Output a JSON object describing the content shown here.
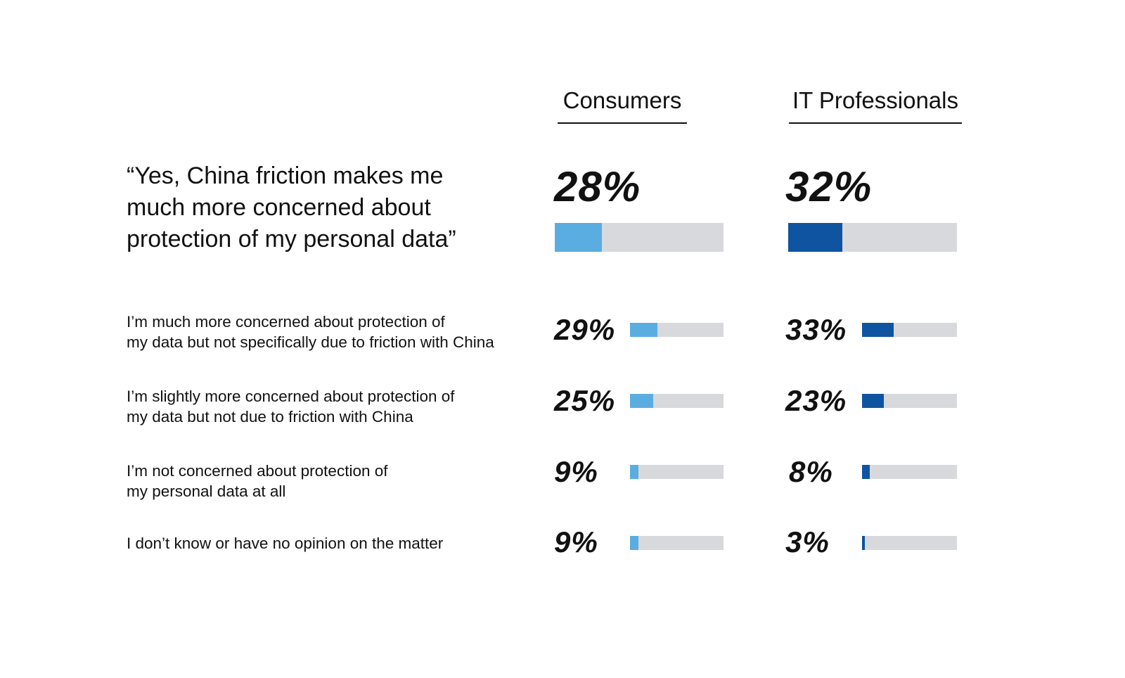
{
  "headers": {
    "consumers": "Consumers",
    "it": "IT Professionals"
  },
  "colors": {
    "consumers": "#5aade1",
    "it": "#0e54a0",
    "track": "#d8d9dc"
  },
  "chart_data": {
    "type": "bar",
    "series": [
      {
        "name": "Consumers",
        "values": [
          28,
          29,
          25,
          9,
          9
        ]
      },
      {
        "name": "IT Professionals",
        "values": [
          32,
          33,
          23,
          8,
          3
        ]
      }
    ],
    "categories": [
      "“Yes, China friction makes me much more concerned about protection of my personal data”",
      "I’m much more concerned about protection of my data but not specifically due to friction with China",
      "I’m slightly more concerned about protection of my data but not due to friction with China",
      "I’m not concerned about protection of my personal data at all",
      "I don’t know or have no opinion on the matter"
    ],
    "ylim": [
      0,
      100
    ]
  },
  "rows": [
    {
      "lines": [
        "“Yes, China friction makes me",
        "much more concerned about",
        "protection of my personal data”"
      ],
      "consumers_label": "28%",
      "it_label": "32%"
    },
    {
      "lines": [
        "I’m much more concerned about protection of",
        "my data but not specifically due to friction with China"
      ],
      "consumers_label": "29%",
      "it_label": "33%"
    },
    {
      "lines": [
        "I’m slightly more concerned about protection of",
        "my data but not due to friction with China"
      ],
      "consumers_label": "25%",
      "it_label": "23%"
    },
    {
      "lines": [
        "I’m not concerned about protection of",
        "my personal data at all"
      ],
      "consumers_label": "9%",
      "it_label": "8%"
    },
    {
      "lines": [
        "I don’t know or have no opinion on the matter"
      ],
      "consumers_label": "9%",
      "it_label": "3%"
    }
  ]
}
